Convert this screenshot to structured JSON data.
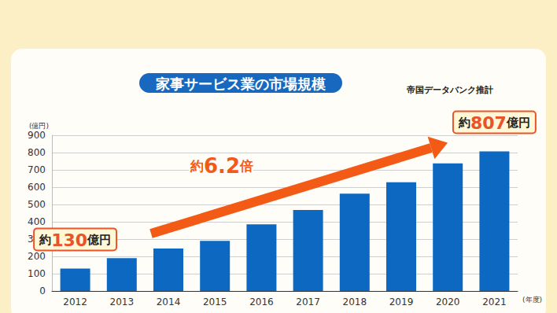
{
  "chart_data": {
    "type": "bar",
    "title": "家事サービス業の市場規模",
    "subtitle": "帝国データバンク推計",
    "x_label": "(年度)",
    "y_label": "(億円)",
    "categories": [
      "2012",
      "2013",
      "2014",
      "2015",
      "2016",
      "2017",
      "2018",
      "2019",
      "2020",
      "2021"
    ],
    "values": [
      130,
      190,
      245,
      290,
      385,
      468,
      563,
      628,
      737,
      807
    ],
    "color": "#0d68c2",
    "ylim": [
      0,
      900
    ],
    "yticks": [
      0,
      100,
      200,
      300,
      400,
      500,
      600,
      700,
      800,
      900
    ],
    "grid": true,
    "annotations": [
      "約130億円",
      "約6.2倍",
      "約807億円"
    ]
  }
}
